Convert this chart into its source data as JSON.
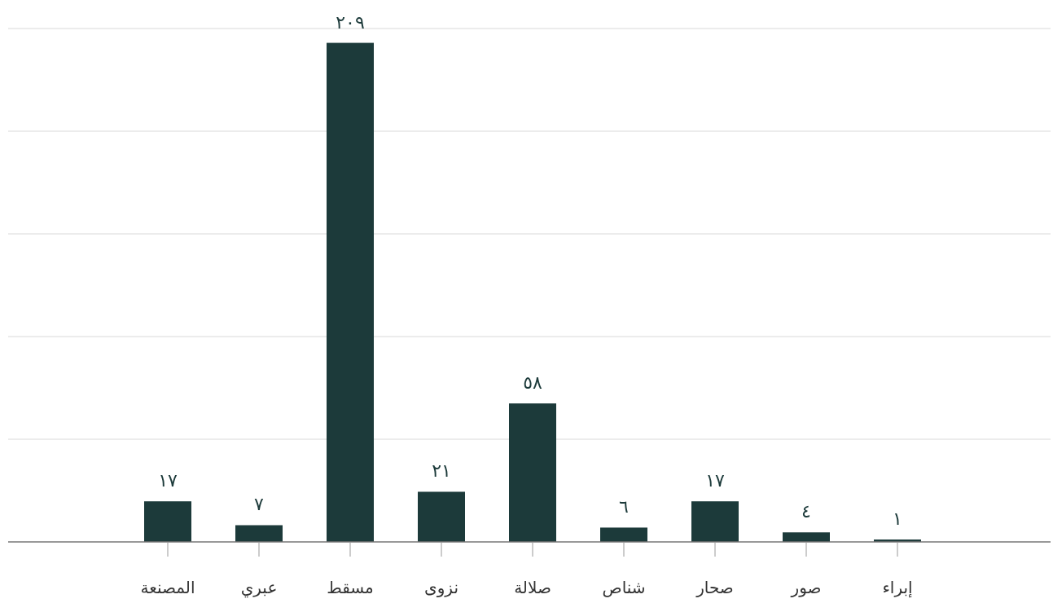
{
  "chart_data": {
    "type": "bar",
    "categories": [
      "المصنعة",
      "عبري",
      "مسقط",
      "نزوى",
      "صلالة",
      "شناص",
      "صحار",
      "صور",
      "إبراء"
    ],
    "values": [
      17,
      7,
      209,
      21,
      58,
      6,
      17,
      4,
      1
    ],
    "value_labels": [
      "١٧",
      "٧",
      "٢٠٩",
      "٢١",
      "٥٨",
      "٦",
      "١٧",
      "٤",
      "١"
    ],
    "color": "#1c3a3a",
    "ylim": [
      0,
      215
    ],
    "yticks": [
      {
        "value": 43,
        "label": null
      },
      {
        "value": 86,
        "label": null
      },
      {
        "value": 129,
        "label": null
      },
      {
        "value": 172,
        "label": null
      },
      {
        "value": 215,
        "label": null
      }
    ],
    "grid": "y",
    "tick_labels": "x"
  }
}
